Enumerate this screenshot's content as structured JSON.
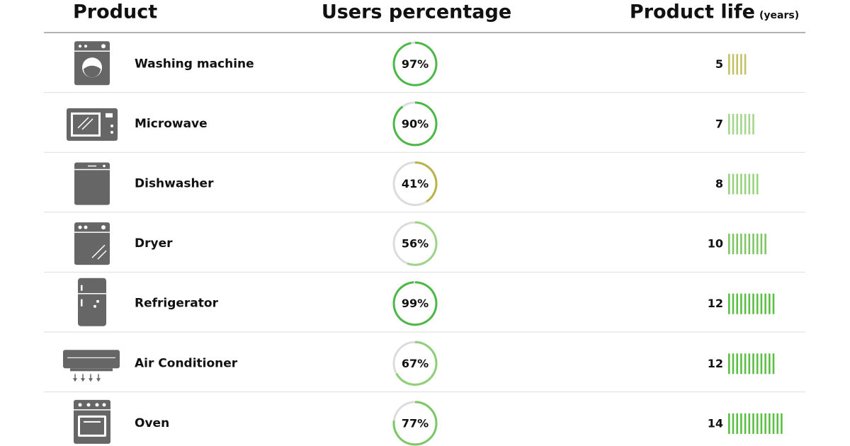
{
  "header": {
    "product": "Product",
    "users": "Users percentage",
    "life": "Product life",
    "life_unit": "(years)"
  },
  "rows": [
    {
      "product": "Washing machine",
      "users": {
        "value": 97,
        "label": "97%"
      },
      "life": 5,
      "ring_color": "#4cb847",
      "bar_color": "#c4c266"
    },
    {
      "product": "Microwave",
      "users": {
        "value": 90,
        "label": "90%"
      },
      "life": 7,
      "ring_color": "#4cb847",
      "bar_color": "#a6d68e"
    },
    {
      "product": "Dishwasher",
      "users": {
        "value": 41,
        "label": "41%"
      },
      "life": 8,
      "ring_color": "#b7b54a",
      "bar_color": "#99d27f"
    },
    {
      "product": "Dryer",
      "users": {
        "value": 56,
        "label": "56%"
      },
      "life": 10,
      "ring_color": "#9ed38a",
      "bar_color": "#7fc766"
    },
    {
      "product": "Refrigerator",
      "users": {
        "value": 99,
        "label": "99%"
      },
      "life": 12,
      "ring_color": "#4cb847",
      "bar_color": "#5bbf45"
    },
    {
      "product": "Air Conditioner",
      "users": {
        "value": 67,
        "label": "67%"
      },
      "life": 12,
      "ring_color": "#8ecf78",
      "bar_color": "#5bbf45"
    },
    {
      "product": "Oven",
      "users": {
        "value": 77,
        "label": "77%"
      },
      "life": 14,
      "ring_color": "#7cc765",
      "bar_color": "#5bbf45"
    }
  ]
}
